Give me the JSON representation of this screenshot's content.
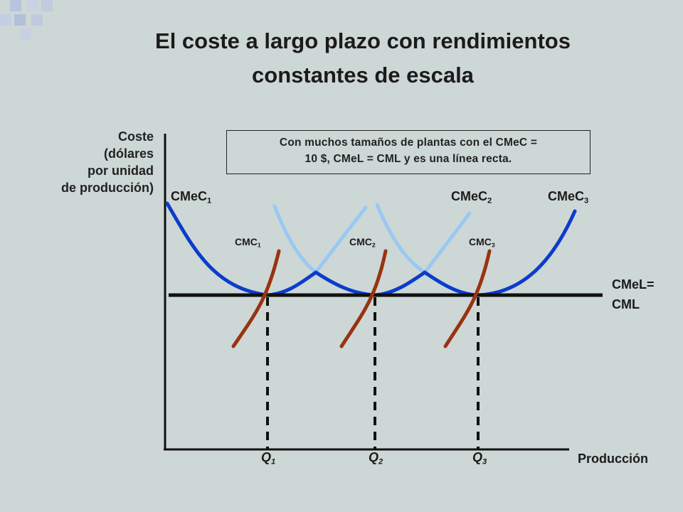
{
  "title": {
    "line1": "El coste a largo plazo con rendimientos",
    "line2": "constantes de escala"
  },
  "y_axis_label": [
    "Coste",
    "(dólares",
    "por unidad",
    "de producción)"
  ],
  "x_axis_label": "Producción",
  "note": {
    "line1": "Con muchos tamaños de plantas con el CMeC =",
    "line2": "10 $, CMeL = CML y es una línea recta."
  },
  "curve_labels": {
    "cmec1": {
      "base": "CMeC",
      "sub": "1"
    },
    "cmec2": {
      "base": "CMeC",
      "sub": "2"
    },
    "cmec3": {
      "base": "CMeC",
      "sub": "3"
    },
    "cmc1": {
      "base": "CMC",
      "sub": "1"
    },
    "cmc2": {
      "base": "CMC",
      "sub": "2"
    },
    "cmc3": {
      "base": "CMC",
      "sub": "3"
    },
    "cmel_line1": "CMeL=",
    "cmel_line2": "CML"
  },
  "quantity_labels": [
    {
      "base": "Q",
      "sub": "1"
    },
    {
      "base": "Q",
      "sub": "2"
    },
    {
      "base": "Q",
      "sub": "3"
    }
  ],
  "colors": {
    "background": "#cdd7d5",
    "cmec_curve": "#0c3ccc",
    "cmec_extension": "#99c9f2",
    "cmc_curve": "#983311",
    "lrac_line": "#111111",
    "deco_square": "#b8c4dc"
  }
}
